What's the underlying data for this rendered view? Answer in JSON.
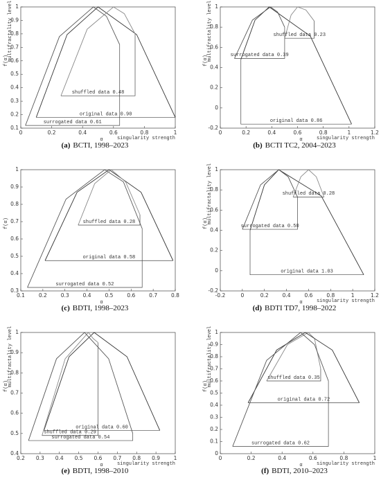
{
  "chart_data": [
    {
      "type": "line",
      "label": "(a)",
      "caption": "BCTI, 1998–2023",
      "ylabel": "f(α)",
      "ylabel2": "multifractality level",
      "xlabel": "α",
      "xlabel2": "singularity strength",
      "xlim": [
        0,
        1
      ],
      "ylim": [
        0.1,
        1
      ],
      "xticks": [
        0,
        0.2,
        0.4,
        0.6,
        0.8,
        1
      ],
      "yticks": [
        0.1,
        0.2,
        0.3,
        0.4,
        0.5,
        0.6,
        0.7,
        0.8,
        0.9,
        1
      ],
      "series": [
        {
          "annotation": "original data 0.90",
          "color": "#333333",
          "x": [
            0.1,
            0.3,
            0.5,
            0.75,
            1.0
          ],
          "values": [
            0.18,
            0.795,
            1,
            0.795,
            0.18
          ]
        },
        {
          "annotation": "surrogated data 0.61",
          "color": "#555555",
          "x": [
            0.03,
            0.25,
            0.47,
            0.555,
            0.64
          ],
          "values": [
            0.12,
            0.78,
            1,
            0.93,
            0.72
          ]
        },
        {
          "annotation": "shuffled data 0.48",
          "color": "#888888",
          "x": [
            0.26,
            0.43,
            0.6,
            0.67,
            0.74
          ],
          "values": [
            0.34,
            0.835,
            1,
            0.95,
            0.8
          ]
        }
      ]
    },
    {
      "type": "line",
      "label": "(b)",
      "caption": "BCTI TC2, 2004–2023",
      "ylabel": "f(α)",
      "ylabel2": "multifractality level",
      "xlabel": "α",
      "xlabel2": "singularity strength",
      "xlim": [
        0,
        1.2
      ],
      "ylim": [
        -0.2,
        1
      ],
      "xticks": [
        0,
        0.2,
        0.4,
        0.6,
        0.8,
        1,
        1.2
      ],
      "yticks": [
        -0.2,
        0,
        0.2,
        0.4,
        0.6,
        0.8,
        1
      ],
      "series": [
        {
          "annotation": "original data 0.86",
          "color": "#333333",
          "x": [
            0.16,
            0.27,
            0.38,
            0.7,
            1.02
          ],
          "values": [
            0.48,
            0.87,
            1,
            0.71,
            -0.16
          ]
        },
        {
          "annotation": "surrogated data 0.39",
          "color": "#555555",
          "x": [
            0.11,
            0.25,
            0.39,
            0.445,
            0.5
          ],
          "values": [
            0.49,
            0.87,
            1,
            0.95,
            0.8
          ]
        },
        {
          "annotation": "shuffled data 0.23",
          "color": "#888888",
          "x": [
            0.5,
            0.55,
            0.6,
            0.665,
            0.73
          ],
          "values": [
            0.69,
            0.92,
            1,
            0.97,
            0.86
          ]
        }
      ]
    },
    {
      "type": "line",
      "label": "(c)",
      "caption": "BDTI, 1998–2023",
      "ylabel": "f(α)",
      "xlabel": "α",
      "xlim": [
        0.1,
        0.8
      ],
      "ylim": [
        0.3,
        1
      ],
      "xticks": [
        0.1,
        0.2,
        0.3,
        0.4,
        0.5,
        0.6,
        0.7,
        0.8
      ],
      "yticks": [
        0.3,
        0.4,
        0.5,
        0.6,
        0.7,
        0.8,
        0.9,
        1
      ],
      "series": [
        {
          "annotation": "original data 0.58",
          "color": "#333333",
          "x": [
            0.21,
            0.355,
            0.5,
            0.645,
            0.79
          ],
          "values": [
            0.475,
            0.87,
            1,
            0.87,
            0.475
          ]
        },
        {
          "annotation": "surrogated data 0.52",
          "color": "#555555",
          "x": [
            0.13,
            0.305,
            0.48,
            0.565,
            0.65
          ],
          "values": [
            0.32,
            0.83,
            1,
            0.93,
            0.66
          ]
        },
        {
          "annotation": "shuffled data 0.28",
          "color": "#888888",
          "x": [
            0.36,
            0.435,
            0.51,
            0.575,
            0.64
          ],
          "values": [
            0.68,
            0.92,
            1,
            0.93,
            0.74
          ]
        }
      ]
    },
    {
      "type": "line",
      "label": "(d)",
      "caption": "BDTI TD7, 1998–2022",
      "ylabel": "f(α)",
      "ylabel2": "multifractality level",
      "xlabel": "α",
      "xlabel2": "singularity strength",
      "xlim": [
        -0.2,
        1.2
      ],
      "ylim": [
        -0.2,
        1
      ],
      "xticks": [
        -0.2,
        0,
        0.2,
        0.4,
        0.6,
        0.8,
        1,
        1.2
      ],
      "yticks": [
        -0.2,
        0,
        0.2,
        0.4,
        0.6,
        0.8,
        1
      ],
      "series": [
        {
          "annotation": "original data 1.03",
          "color": "#333333",
          "x": [
            0.07,
            0.2,
            0.33,
            0.715,
            1.1
          ],
          "values": [
            0.4,
            0.85,
            1,
            0.74,
            -0.04
          ]
        },
        {
          "annotation": "surrogated data 0.50",
          "color": "#555555",
          "x": [
            0,
            0.165,
            0.33,
            0.415,
            0.5
          ],
          "values": [
            0.41,
            0.85,
            1,
            0.93,
            0.73
          ]
        },
        {
          "annotation": "shuffled data 0.28",
          "color": "#888888",
          "x": [
            0.46,
            0.53,
            0.6,
            0.67,
            0.74
          ],
          "values": [
            0.73,
            0.93,
            1,
            0.93,
            0.73
          ]
        }
      ]
    },
    {
      "type": "line",
      "label": "(e)",
      "caption": "BDTI, 1998–2010",
      "ylabel": "f(α)",
      "ylabel2": "multifractality level",
      "xlabel": "α",
      "xlabel2": "singularity strength",
      "xlim": [
        0.2,
        1
      ],
      "ylim": [
        0.4,
        1
      ],
      "xticks": [
        0.2,
        0.3,
        0.4,
        0.5,
        0.6,
        0.7,
        0.8,
        0.9,
        1
      ],
      "yticks": [
        0.4,
        0.5,
        0.6,
        0.7,
        0.8,
        0.9,
        1
      ],
      "series": [
        {
          "annotation": "original data 0.60",
          "color": "#333333",
          "x": [
            0.32,
            0.45,
            0.58,
            0.75,
            0.92
          ],
          "values": [
            0.515,
            0.88,
            1,
            0.88,
            0.515
          ]
        },
        {
          "annotation": "shuffled data 0.29",
          "color": "#888888",
          "x": [
            0.31,
            0.43,
            0.55,
            0.575,
            0.6
          ],
          "values": [
            0.49,
            0.87,
            1,
            0.97,
            0.95
          ]
        },
        {
          "annotation": "surrogated data 0.54",
          "color": "#555555",
          "x": [
            0.24,
            0.385,
            0.53,
            0.655,
            0.78
          ],
          "values": [
            0.465,
            0.87,
            1,
            0.87,
            0.5
          ]
        }
      ]
    },
    {
      "type": "line",
      "label": "(f)",
      "caption": "BDTI, 2010–2023",
      "ylabel": "f(α)",
      "ylabel2": "multifractality level",
      "xlabel": "α",
      "xlabel2": "singularity strength",
      "xlim": [
        0,
        1
      ],
      "ylim": [
        0,
        1
      ],
      "xticks": [
        0,
        0.2,
        0.4,
        0.6,
        0.8,
        1
      ],
      "yticks": [
        0,
        0.1,
        0.2,
        0.3,
        0.4,
        0.5,
        0.6,
        0.7,
        0.8,
        0.9,
        1
      ],
      "series": [
        {
          "annotation": "shuffled data 0.35",
          "color": "#888888",
          "x": [
            0.3,
            0.435,
            0.57,
            0.61,
            0.65
          ],
          "values": [
            0.6,
            0.9,
            1,
            0.95,
            0.7
          ]
        },
        {
          "annotation": "original data 0.72",
          "color": "#333333",
          "x": [
            0.18,
            0.365,
            0.55,
            0.725,
            0.9
          ],
          "values": [
            0.42,
            0.855,
            1,
            0.855,
            0.42
          ]
        },
        {
          "annotation": "surrogated data 0.62",
          "color": "#555555",
          "x": [
            0.08,
            0.3,
            0.52,
            0.61,
            0.7
          ],
          "values": [
            0.06,
            0.77,
            1,
            0.9,
            0.6
          ]
        }
      ]
    }
  ]
}
